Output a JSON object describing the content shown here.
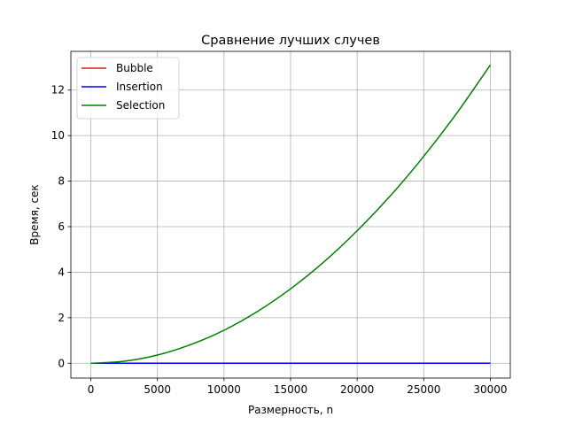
{
  "chart_data": {
    "type": "line",
    "title": "Сравнение лучших случев",
    "xlabel": "Размерность, n",
    "ylabel": "Время, сек",
    "xlim": [
      -1500,
      31500
    ],
    "ylim": [
      -0.65,
      13.7
    ],
    "xticks": [
      0,
      5000,
      10000,
      15000,
      20000,
      25000,
      30000
    ],
    "xtick_labels": [
      "0",
      "5000",
      "10000",
      "15000",
      "20000",
      "25000",
      "30000"
    ],
    "yticks": [
      0,
      2,
      4,
      6,
      8,
      10,
      12
    ],
    "ytick_labels": [
      "0",
      "2",
      "4",
      "6",
      "8",
      "10",
      "12"
    ],
    "grid": true,
    "legend_position": "top-left",
    "x": [
      0,
      2500,
      5000,
      7500,
      10000,
      12500,
      15000,
      17500,
      20000,
      22500,
      25000,
      27500,
      30000
    ],
    "series": [
      {
        "name": "Bubble",
        "color": "#e41a1c",
        "values": [
          0,
          0,
          0,
          0,
          0,
          0,
          0,
          0,
          0,
          0,
          0,
          0,
          0
        ]
      },
      {
        "name": "Insertion",
        "color": "#0000ff",
        "values": [
          0,
          0,
          0,
          0,
          0,
          0,
          0,
          0,
          0,
          0,
          0,
          0,
          0
        ]
      },
      {
        "name": "Selection",
        "color": "#008000",
        "values": [
          0,
          0.09,
          0.36,
          0.82,
          1.45,
          2.27,
          3.27,
          4.45,
          5.82,
          7.36,
          9.09,
          11.0,
          13.1
        ]
      }
    ]
  }
}
